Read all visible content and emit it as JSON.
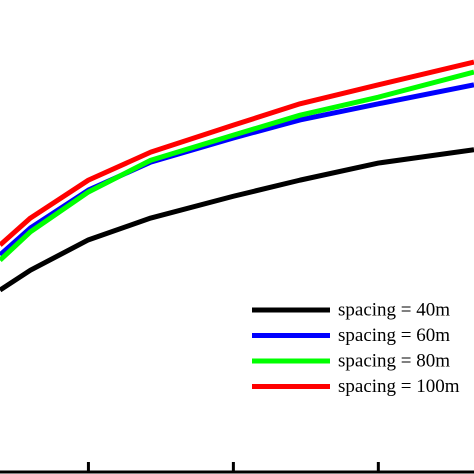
{
  "chart_data": {
    "type": "line",
    "x": [
      0.39,
      0.6,
      1.0,
      1.43,
      2.0,
      2.46,
      3.0,
      3.66
    ],
    "xlim": [
      0.39,
      3.66
    ],
    "xticks": [
      1,
      2,
      3
    ],
    "ylim": [
      0,
      100
    ],
    "series": [
      {
        "name": "spacing = 40m",
        "color": "#000000",
        "values": [
          38.8,
          43.0,
          49.4,
          54.0,
          58.6,
          62.0,
          65.6,
          68.4
        ]
      },
      {
        "name": "spacing = 60m",
        "color": "#0000ff",
        "values": [
          46.2,
          51.9,
          59.9,
          65.8,
          70.9,
          74.7,
          78.1,
          82.1
        ]
      },
      {
        "name": "spacing = 80m",
        "color": "#00ff00",
        "values": [
          45.1,
          51.1,
          59.5,
          66.2,
          71.5,
          75.7,
          79.5,
          84.8
        ]
      },
      {
        "name": "spacing = 100m",
        "color": "#ff0000",
        "values": [
          48.3,
          54.0,
          62.0,
          67.9,
          73.6,
          78.1,
          82.1,
          86.9
        ]
      }
    ]
  }
}
